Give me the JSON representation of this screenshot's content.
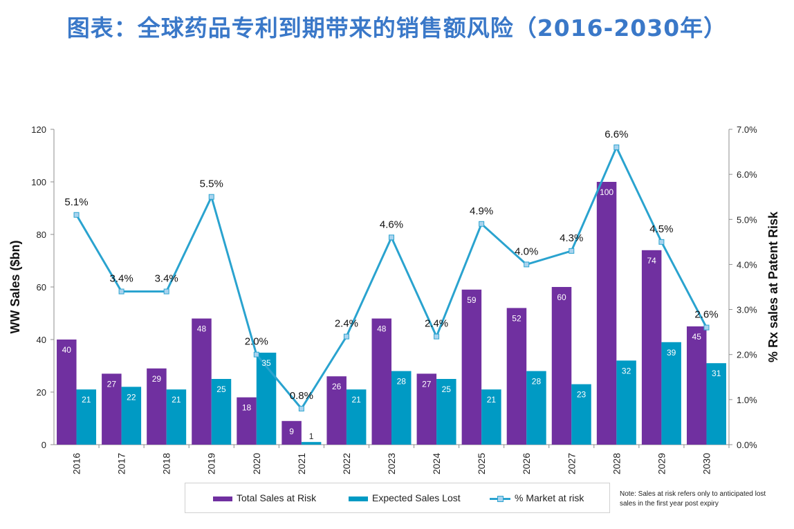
{
  "title": "图表：全球药品专利到期带来的销售额风险（2016-2030年）",
  "chart_data": {
    "type": "bar",
    "categories": [
      "2016",
      "2017",
      "2018",
      "2019",
      "2020",
      "2021",
      "2022",
      "2023",
      "2024",
      "2025",
      "2026",
      "2027",
      "2028",
      "2029",
      "2030"
    ],
    "series": [
      {
        "name": "Total Sales at Risk",
        "type": "bar",
        "axis": "left",
        "color": "#7030a0",
        "values": [
          40,
          27,
          29,
          48,
          18,
          9,
          26,
          48,
          27,
          59,
          52,
          60,
          100,
          74,
          45
        ]
      },
      {
        "name": "Expected Sales Lost",
        "type": "bar",
        "axis": "left",
        "color": "#009ac4",
        "values": [
          21,
          22,
          21,
          25,
          35,
          1,
          21,
          28,
          25,
          21,
          28,
          23,
          32,
          39,
          31
        ]
      },
      {
        "name": "% Market at risk",
        "type": "line",
        "axis": "right",
        "color": "#2aa3cf",
        "values": [
          5.1,
          3.4,
          3.4,
          5.5,
          2.0,
          0.8,
          2.4,
          4.6,
          2.4,
          4.9,
          4.0,
          4.3,
          6.6,
          4.5,
          2.6
        ],
        "labels": [
          "5.1%",
          "3.4%",
          "3.4%",
          "5.5%",
          "2.0%",
          "0.8%",
          "2.4%",
          "4.6%",
          "2.4%",
          "4.9%",
          "4.0%",
          "4.3%",
          "6.6%",
          "4.5%",
          "2.6%"
        ]
      }
    ],
    "ylabel": "WW Sales ($bn)",
    "ylim": [
      0,
      120
    ],
    "yticks": [
      "0",
      "20",
      "40",
      "60",
      "80",
      "100",
      "120"
    ],
    "y2label": "% Rx sales at Patent Risk",
    "y2lim": [
      0,
      7
    ],
    "y2ticks": [
      "0.0%",
      "1.0%",
      "2.0%",
      "3.0%",
      "4.0%",
      "5.0%",
      "6.0%",
      "7.0%"
    ],
    "grid": false,
    "legend_position": "bottom",
    "legend": [
      "Total Sales at Risk",
      "Expected Sales Lost",
      "% Market at risk"
    ],
    "note": "Note: Sales at risk refers only to anticipated lost sales in the first year post expiry"
  }
}
